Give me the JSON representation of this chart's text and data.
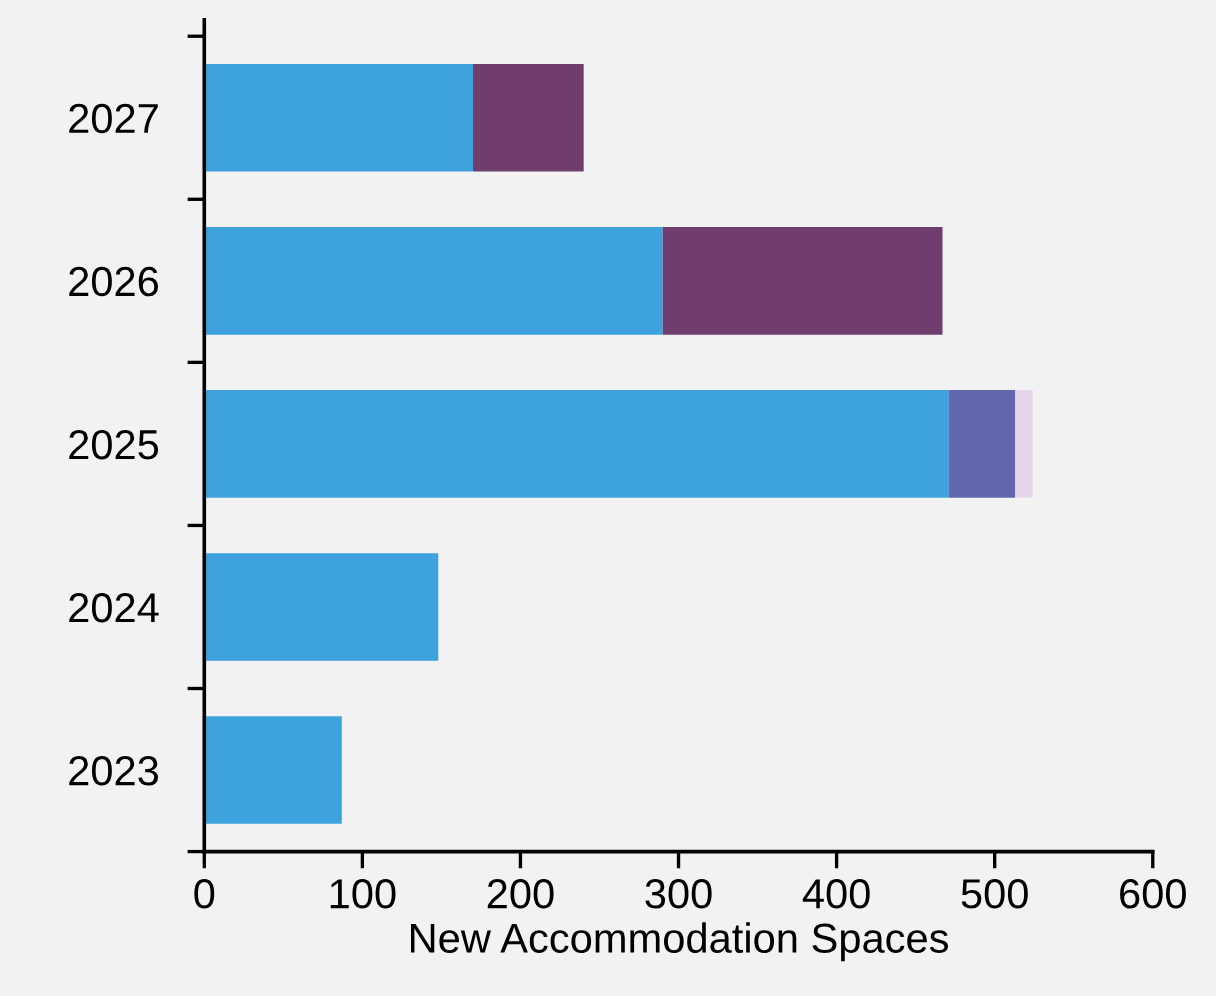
{
  "chart_data": {
    "type": "bar",
    "orientation": "horizontal",
    "stacked": true,
    "xlabel": "New Accommodation Spaces",
    "categories": [
      "2027",
      "2026",
      "2025",
      "2024",
      "2023"
    ],
    "series": [
      {
        "color": "#3ea2dc",
        "values": [
          170,
          290,
          471,
          148,
          87
        ]
      },
      {
        "color": "#6f3d6e",
        "values": [
          70,
          177,
          null,
          null,
          null
        ]
      },
      {
        "color": "#6368ae",
        "values": [
          null,
          null,
          42,
          null,
          null
        ]
      },
      {
        "color": "#e6d5ea",
        "values": [
          null,
          null,
          11,
          null,
          null
        ]
      }
    ],
    "xlim": [
      0,
      600
    ],
    "xticks": [
      0,
      100,
      200,
      300,
      400,
      500,
      600
    ],
    "grid": false,
    "legend": false
  }
}
